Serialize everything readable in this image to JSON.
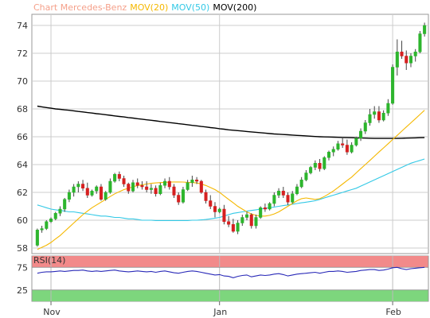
{
  "chart_data": [
    {
      "type": "candlestick",
      "title": "Chart Mercedes-Benz",
      "legend": [
        {
          "name": "MOV(20)",
          "color": "#f5b800"
        },
        {
          "name": "MOV(50)",
          "color": "#33c9e6"
        },
        {
          "name": "MOV(200)",
          "color": "#000000"
        }
      ],
      "ylim": [
        57.6,
        74.8
      ],
      "yticks": [
        58,
        60,
        62,
        64,
        66,
        68,
        70,
        72,
        74
      ],
      "xticks": [
        {
          "index": 3,
          "label": "Nov"
        },
        {
          "index": 40,
          "label": "Jan"
        },
        {
          "index": 78,
          "label": "Feb"
        }
      ],
      "candles": [
        [
          58.2,
          59.4,
          58.1,
          59.3
        ],
        [
          59.3,
          59.6,
          59.1,
          59.4
        ],
        [
          59.4,
          60.0,
          59.3,
          59.9
        ],
        [
          59.9,
          60.2,
          59.8,
          60.1
        ],
        [
          60.1,
          60.6,
          60.0,
          60.5
        ],
        [
          60.5,
          61.0,
          60.3,
          60.8
        ],
        [
          60.8,
          61.6,
          60.6,
          61.5
        ],
        [
          61.5,
          62.2,
          61.3,
          62.0
        ],
        [
          62.0,
          62.6,
          61.7,
          62.4
        ],
        [
          62.4,
          62.8,
          62.0,
          62.6
        ],
        [
          62.6,
          62.9,
          62.1,
          62.3
        ],
        [
          62.3,
          62.7,
          61.6,
          61.8
        ],
        [
          61.8,
          62.2,
          61.7,
          62.1
        ],
        [
          62.1,
          62.5,
          61.9,
          62.4
        ],
        [
          62.4,
          62.6,
          61.4,
          61.5
        ],
        [
          61.5,
          62.1,
          61.4,
          62.0
        ],
        [
          62.0,
          63.0,
          61.9,
          62.8
        ],
        [
          62.8,
          63.4,
          62.7,
          63.3
        ],
        [
          63.3,
          63.5,
          62.8,
          63.0
        ],
        [
          63.0,
          63.2,
          62.4,
          62.6
        ],
        [
          62.6,
          62.7,
          61.9,
          62.1
        ],
        [
          62.1,
          62.9,
          62.0,
          62.7
        ],
        [
          62.7,
          63.0,
          62.3,
          62.5
        ],
        [
          62.5,
          62.8,
          62.2,
          62.4
        ],
        [
          62.4,
          62.8,
          62.0,
          62.2
        ],
        [
          62.2,
          62.6,
          61.9,
          62.3
        ],
        [
          62.3,
          62.5,
          61.7,
          61.9
        ],
        [
          61.9,
          62.7,
          61.8,
          62.5
        ],
        [
          62.5,
          63.0,
          62.3,
          62.8
        ],
        [
          62.8,
          63.1,
          62.2,
          62.4
        ],
        [
          62.4,
          62.6,
          61.6,
          61.8
        ],
        [
          61.8,
          62.0,
          61.1,
          61.3
        ],
        [
          61.3,
          62.4,
          61.2,
          62.2
        ],
        [
          62.2,
          62.9,
          62.1,
          62.7
        ],
        [
          62.7,
          63.2,
          62.4,
          62.9
        ],
        [
          62.9,
          63.1,
          62.6,
          62.8
        ],
        [
          62.8,
          62.9,
          61.9,
          62.0
        ],
        [
          62.0,
          62.2,
          61.2,
          61.4
        ],
        [
          61.4,
          61.8,
          60.8,
          61.0
        ],
        [
          61.0,
          61.3,
          60.2,
          60.6
        ],
        [
          60.6,
          60.9,
          60.5,
          60.8
        ],
        [
          60.8,
          61.1,
          59.7,
          59.9
        ],
        [
          59.9,
          60.3,
          59.5,
          59.7
        ],
        [
          59.7,
          60.1,
          59.1,
          59.2
        ],
        [
          59.2,
          60.0,
          59.0,
          59.8
        ],
        [
          59.8,
          60.4,
          59.6,
          60.2
        ],
        [
          60.2,
          60.6,
          60.0,
          60.4
        ],
        [
          60.4,
          60.5,
          59.4,
          59.6
        ],
        [
          59.6,
          60.4,
          59.4,
          60.2
        ],
        [
          60.2,
          61.0,
          60.1,
          60.9
        ],
        [
          60.9,
          61.2,
          60.6,
          60.8
        ],
        [
          60.8,
          61.3,
          60.7,
          61.2
        ],
        [
          61.2,
          62.0,
          61.0,
          61.8
        ],
        [
          61.8,
          62.3,
          61.6,
          62.1
        ],
        [
          62.1,
          62.4,
          61.6,
          61.8
        ],
        [
          61.8,
          62.0,
          61.1,
          61.3
        ],
        [
          61.3,
          62.1,
          61.2,
          61.9
        ],
        [
          61.9,
          62.6,
          61.8,
          62.4
        ],
        [
          62.4,
          63.1,
          62.3,
          62.9
        ],
        [
          62.9,
          63.6,
          62.8,
          63.4
        ],
        [
          63.4,
          63.9,
          63.3,
          63.8
        ],
        [
          63.8,
          64.3,
          63.6,
          64.1
        ],
        [
          64.1,
          64.4,
          63.5,
          63.7
        ],
        [
          63.7,
          64.6,
          63.6,
          64.5
        ],
        [
          64.5,
          65.0,
          64.3,
          64.9
        ],
        [
          64.9,
          65.3,
          64.6,
          65.1
        ],
        [
          65.1,
          65.7,
          65.0,
          65.5
        ],
        [
          65.5,
          66.0,
          65.2,
          65.4
        ],
        [
          65.4,
          65.8,
          64.7,
          64.9
        ],
        [
          64.9,
          65.6,
          64.8,
          65.4
        ],
        [
          65.4,
          66.0,
          65.3,
          65.9
        ],
        [
          65.9,
          66.6,
          65.7,
          66.4
        ],
        [
          66.4,
          67.2,
          66.2,
          67.0
        ],
        [
          67.0,
          68.0,
          66.8,
          67.6
        ],
        [
          67.6,
          68.2,
          67.3,
          67.8
        ],
        [
          67.8,
          68.2,
          67.0,
          67.2
        ],
        [
          67.2,
          67.9,
          67.1,
          67.7
        ],
        [
          67.7,
          68.7,
          67.5,
          68.4
        ],
        [
          68.4,
          71.2,
          68.3,
          71.0
        ],
        [
          71.0,
          73.0,
          70.4,
          72.1
        ],
        [
          72.1,
          72.9,
          71.6,
          71.8
        ],
        [
          71.8,
          72.2,
          70.8,
          71.3
        ],
        [
          71.3,
          72.0,
          71.0,
          71.8
        ],
        [
          71.8,
          72.3,
          71.4,
          72.1
        ],
        [
          72.1,
          73.6,
          72.0,
          73.4
        ],
        [
          73.4,
          74.2,
          73.2,
          74.0
        ]
      ],
      "mov20": [
        57.9,
        58.05,
        58.2,
        58.4,
        58.65,
        58.9,
        59.2,
        59.5,
        59.8,
        60.1,
        60.4,
        60.65,
        60.9,
        61.1,
        61.3,
        61.5,
        61.7,
        61.9,
        62.05,
        62.2,
        62.3,
        62.4,
        62.5,
        62.55,
        62.6,
        62.65,
        62.68,
        62.7,
        62.72,
        62.74,
        62.75,
        62.75,
        62.74,
        62.72,
        62.7,
        62.68,
        62.6,
        62.5,
        62.35,
        62.2,
        62.0,
        61.75,
        61.5,
        61.25,
        61.0,
        60.8,
        60.6,
        60.45,
        60.35,
        60.3,
        60.3,
        60.35,
        60.45,
        60.6,
        60.8,
        61.0,
        61.2,
        61.4,
        61.55,
        61.6,
        61.55,
        61.5,
        61.55,
        61.7,
        61.9,
        62.1,
        62.35,
        62.6,
        62.85,
        63.1,
        63.4,
        63.7,
        64.0,
        64.3,
        64.6,
        64.9,
        65.2,
        65.5,
        65.8,
        66.1,
        66.4,
        66.7,
        67.0,
        67.3,
        67.6,
        67.9
      ],
      "mov50": [
        61.1,
        61.0,
        60.9,
        60.8,
        60.75,
        60.7,
        60.65,
        60.6,
        60.6,
        60.55,
        60.5,
        60.45,
        60.4,
        60.35,
        60.3,
        60.3,
        60.25,
        60.2,
        60.2,
        60.15,
        60.1,
        60.1,
        60.05,
        60.0,
        60.0,
        60.0,
        59.98,
        59.98,
        59.98,
        59.98,
        59.98,
        59.98,
        59.98,
        59.98,
        60.0,
        60.0,
        60.02,
        60.05,
        60.1,
        60.15,
        60.2,
        60.3,
        60.4,
        60.5,
        60.55,
        60.6,
        60.65,
        60.7,
        60.75,
        60.8,
        60.85,
        60.9,
        60.95,
        61.0,
        61.05,
        61.1,
        61.15,
        61.2,
        61.25,
        61.3,
        61.35,
        61.4,
        61.5,
        61.6,
        61.7,
        61.8,
        61.9,
        62.0,
        62.1,
        62.2,
        62.3,
        62.45,
        62.6,
        62.75,
        62.9,
        63.05,
        63.2,
        63.35,
        63.5,
        63.65,
        63.8,
        63.95,
        64.1,
        64.2,
        64.3,
        64.4
      ],
      "mov200": [
        68.2,
        68.15,
        68.1,
        68.05,
        68.0,
        67.97,
        67.93,
        67.9,
        67.86,
        67.82,
        67.78,
        67.74,
        67.7,
        67.66,
        67.62,
        67.58,
        67.54,
        67.5,
        67.46,
        67.42,
        67.38,
        67.34,
        67.3,
        67.26,
        67.22,
        67.18,
        67.14,
        67.1,
        67.06,
        67.02,
        66.98,
        66.94,
        66.9,
        66.86,
        66.82,
        66.78,
        66.74,
        66.7,
        66.66,
        66.62,
        66.58,
        66.54,
        66.5,
        66.47,
        66.44,
        66.41,
        66.38,
        66.35,
        66.32,
        66.29,
        66.26,
        66.23,
        66.2,
        66.18,
        66.16,
        66.14,
        66.12,
        66.1,
        66.08,
        66.06,
        66.04,
        66.02,
        66.0,
        65.99,
        65.98,
        65.97,
        65.96,
        65.95,
        65.94,
        65.93,
        65.92,
        65.91,
        65.9,
        65.89,
        65.88,
        65.88,
        65.88,
        65.88,
        65.88,
        65.88,
        65.89,
        65.9,
        65.91,
        65.92,
        65.93,
        65.94
      ]
    },
    {
      "type": "line",
      "title": "RSI(14)",
      "ylim": [
        0,
        100
      ],
      "yticks": [
        25,
        75
      ],
      "zones": [
        {
          "from": 75,
          "to": 100,
          "color": "#f28a8a"
        },
        {
          "from": 0,
          "to": 25,
          "color": "#7dd67d"
        }
      ],
      "series": [
        {
          "color": "#2a2ab8",
          "values": [
            62,
            64,
            65,
            65,
            66,
            67,
            66,
            67,
            68,
            68,
            69,
            67,
            66,
            67,
            66,
            67,
            68,
            69,
            67,
            66,
            65,
            66,
            67,
            66,
            65,
            66,
            64,
            66,
            67,
            65,
            63,
            62,
            64,
            66,
            67,
            66,
            64,
            62,
            60,
            58,
            59,
            56,
            55,
            52,
            55,
            57,
            58,
            54,
            56,
            58,
            57,
            58,
            60,
            61,
            59,
            56,
            58,
            60,
            61,
            62,
            63,
            64,
            62,
            64,
            66,
            66,
            67,
            66,
            64,
            65,
            66,
            68,
            69,
            70,
            70,
            68,
            69,
            71,
            74,
            75,
            72,
            70,
            72,
            73,
            74,
            75
          ]
        }
      ]
    }
  ]
}
